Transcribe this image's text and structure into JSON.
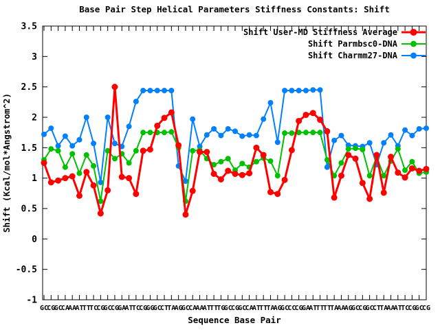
{
  "title": "Base Pair Step Helical Parameters Stiffness Constants: Shift",
  "chart_data": {
    "type": "line",
    "title": "Base Pair Step Helical Parameters Stiffness Constants: Shift",
    "xlabel": "Sequence Base Pair",
    "ylabel": "Shift (Kcal/mol*Angstrom^2)",
    "ylim": [
      -1,
      3.5
    ],
    "yticks": [
      "3.5",
      "3",
      "2.5",
      "2",
      "1.5",
      "1",
      "0.5",
      "0",
      "-0.5",
      "-1"
    ],
    "ytick_values": [
      3.5,
      3,
      2.5,
      2,
      1.5,
      1,
      0.5,
      0,
      -0.5,
      -1
    ],
    "grid": false,
    "legend_position": "top-right-inside",
    "xticks_note": "tick labels are 2-letter base-pair steps that overlap illegibly in the source image; first begins with G, last is CG; labels below are approximate",
    "categories": [
      "GC",
      "CG",
      "GC",
      "CA",
      "AA",
      "AT",
      "TT",
      "TC",
      "CG",
      "GC",
      "CG",
      "GA",
      "AT",
      "TC",
      "CG",
      "GG",
      "GC",
      "CT",
      "TA",
      "AG",
      "GC",
      "CA",
      "AA",
      "AT",
      "TT",
      "TG",
      "GC",
      "CG",
      "GC",
      "CA",
      "AT",
      "TT",
      "TA",
      "AG",
      "GC",
      "CC",
      "CG",
      "GA",
      "AT",
      "TT",
      "TT",
      "TA",
      "AA",
      "AG",
      "GC",
      "CG",
      "GC",
      "CT",
      "TA",
      "AA",
      "AT",
      "TC",
      "CG",
      "GC",
      "CG"
    ],
    "series": [
      {
        "name": "Shift User-MD Stiffness Average",
        "color": "#ff0000",
        "line_width": 3,
        "marker": "filled-circle",
        "marker_radius": 4.5,
        "values": [
          1.25,
          0.93,
          0.96,
          1.0,
          1.03,
          0.71,
          1.1,
          0.88,
          0.42,
          0.8,
          2.5,
          1.02,
          1.0,
          0.74,
          1.45,
          1.47,
          1.86,
          1.99,
          2.08,
          1.54,
          0.4,
          0.79,
          1.43,
          1.43,
          1.07,
          0.98,
          1.12,
          1.07,
          1.05,
          1.08,
          1.5,
          1.38,
          0.77,
          0.74,
          0.97,
          1.46,
          1.94,
          2.04,
          2.07,
          1.96,
          1.77,
          0.68,
          1.04,
          1.38,
          1.32,
          0.92,
          0.66,
          1.38,
          0.76,
          1.35,
          1.09,
          1.01,
          1.16,
          1.12,
          1.15
        ]
      },
      {
        "name": "Shift Parmbsc0-DNA",
        "color": "#00c000",
        "line_width": 2,
        "marker": "filled-circle",
        "marker_radius": 4,
        "values": [
          1.3,
          1.48,
          1.45,
          1.18,
          1.4,
          1.08,
          1.38,
          1.2,
          0.62,
          1.45,
          1.32,
          1.4,
          1.25,
          1.45,
          1.75,
          1.75,
          1.75,
          1.75,
          1.76,
          1.5,
          0.62,
          1.45,
          1.46,
          1.32,
          1.22,
          1.27,
          1.32,
          1.13,
          1.24,
          1.18,
          1.27,
          1.33,
          1.28,
          1.04,
          1.74,
          1.74,
          1.75,
          1.75,
          1.75,
          1.75,
          1.3,
          1.04,
          1.25,
          1.48,
          1.49,
          1.47,
          1.04,
          1.35,
          1.04,
          1.28,
          1.48,
          1.13,
          1.27,
          1.08,
          1.1
        ]
      },
      {
        "name": "Shift Charmm27-DNA",
        "color": "#0080ff",
        "line_width": 2,
        "marker": "filled-circle",
        "marker_radius": 4,
        "values": [
          1.72,
          1.82,
          1.53,
          1.69,
          1.53,
          1.63,
          2.0,
          1.57,
          0.93,
          2.0,
          1.57,
          1.52,
          1.85,
          2.26,
          2.44,
          2.44,
          2.44,
          2.44,
          2.44,
          1.2,
          0.95,
          1.97,
          1.52,
          1.71,
          1.81,
          1.7,
          1.81,
          1.77,
          1.69,
          1.71,
          1.7,
          1.97,
          2.24,
          1.59,
          2.44,
          2.44,
          2.44,
          2.44,
          2.45,
          2.45,
          1.18,
          1.62,
          1.7,
          1.54,
          1.53,
          1.52,
          1.58,
          1.22,
          1.58,
          1.71,
          1.53,
          1.79,
          1.7,
          1.81,
          1.82
        ]
      }
    ]
  }
}
